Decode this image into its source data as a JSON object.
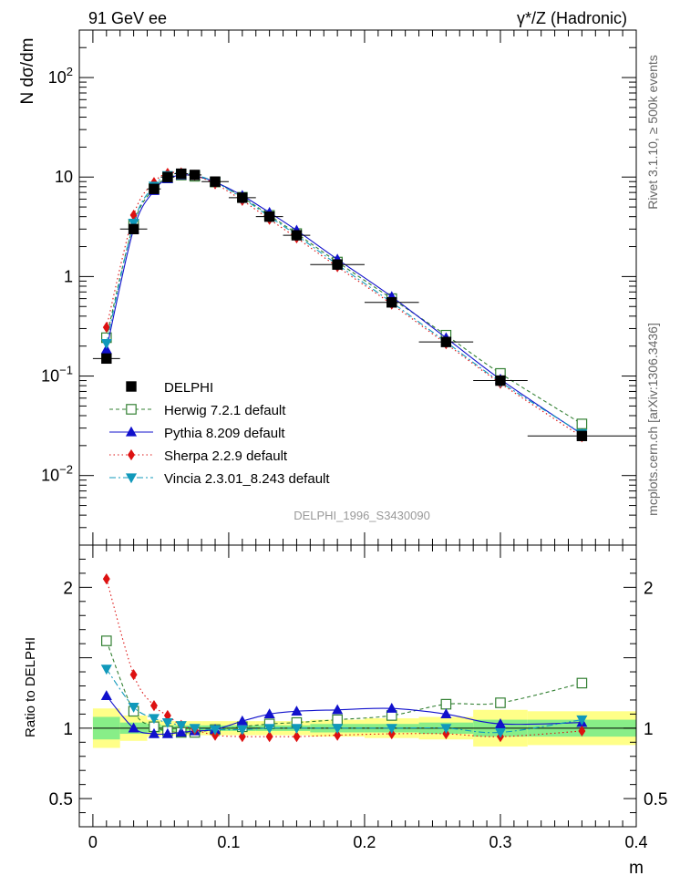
{
  "header": {
    "left_title": "91 GeV ee",
    "right_title": "γ*/Z (Hadronic)"
  },
  "side_labels": {
    "right_top": "Rivet 3.1.10, ≥ 500k events",
    "right_bottom": "mcplots.cern.ch [arXiv:1306.3436]"
  },
  "watermark": "DELPHI_1996_S3430090",
  "chart_data": {
    "type": "line",
    "x_label": "m",
    "main": {
      "ylabel": "N dσ/dm",
      "yscale": "log",
      "ylim": [
        0.002,
        300
      ],
      "xlim": [
        -0.01,
        0.4
      ],
      "y_ticks": [
        {
          "v": 0.01,
          "base": "10",
          "exp": "−2",
          "plain": ""
        },
        {
          "v": 0.1,
          "base": "10",
          "exp": "−1",
          "plain": ""
        },
        {
          "v": 1,
          "base": "",
          "exp": "",
          "plain": "1"
        },
        {
          "v": 10,
          "base": "",
          "exp": "",
          "plain": "10"
        },
        {
          "v": 100,
          "base": "10",
          "exp": "2",
          "plain": ""
        }
      ]
    },
    "ratio": {
      "ylabel": "Ratio to DELPHI",
      "ylim": [
        0.3,
        2.3
      ],
      "y_ticks": [
        {
          "v": 0.5,
          "label": "0.5"
        },
        {
          "v": 1,
          "label": "1"
        },
        {
          "v": 2,
          "label": "2"
        }
      ]
    },
    "x_ticks": [
      {
        "v": 0,
        "label": "0"
      },
      {
        "v": 0.1,
        "label": "0.1"
      },
      {
        "v": 0.2,
        "label": "0.2"
      },
      {
        "v": 0.3,
        "label": "0.3"
      },
      {
        "v": 0.4,
        "label": "0.4"
      }
    ],
    "data": {
      "name": "DELPHI",
      "x": [
        0.01,
        0.03,
        0.045,
        0.055,
        0.065,
        0.075,
        0.09,
        0.11,
        0.13,
        0.15,
        0.18,
        0.22,
        0.26,
        0.3,
        0.36
      ],
      "y": [
        0.15,
        3.0,
        7.6,
        10.0,
        10.8,
        10.5,
        9.0,
        6.2,
        4.0,
        2.6,
        1.32,
        0.55,
        0.22,
        0.09,
        0.025
      ],
      "xerr": [
        0.01,
        0.01,
        0.005,
        0.005,
        0.005,
        0.005,
        0.01,
        0.01,
        0.01,
        0.01,
        0.02,
        0.02,
        0.02,
        0.02,
        0.04
      ],
      "band_stat": [
        0.08,
        0.04,
        0.03,
        0.02,
        0.02,
        0.02,
        0.02,
        0.02,
        0.02,
        0.02,
        0.03,
        0.03,
        0.04,
        0.06,
        0.06
      ],
      "band_tot": [
        0.14,
        0.09,
        0.06,
        0.05,
        0.05,
        0.05,
        0.05,
        0.05,
        0.05,
        0.05,
        0.06,
        0.07,
        0.08,
        0.13,
        0.12
      ]
    },
    "series": [
      {
        "name": "Herwig 7.2.1 default",
        "color": "#338033",
        "marker": "square-open",
        "dash": "4,3",
        "ratio": [
          1.62,
          1.12,
          1.01,
          0.98,
          0.97,
          0.97,
          0.99,
          1.01,
          1.03,
          1.04,
          1.06,
          1.09,
          1.17,
          1.18,
          1.32
        ]
      },
      {
        "name": "Pythia 8.209 default",
        "color": "#1111cc",
        "marker": "triangle-up",
        "dash": "",
        "ratio": [
          1.23,
          1.0,
          0.96,
          0.96,
          0.97,
          0.98,
          0.99,
          1.05,
          1.1,
          1.12,
          1.13,
          1.14,
          1.1,
          1.03,
          1.04
        ]
      },
      {
        "name": "Sherpa 2.2.9 default",
        "color": "#dd1111",
        "marker": "diamond",
        "dash": "1.5,3",
        "ratio": [
          2.06,
          1.38,
          1.16,
          1.09,
          1.02,
          0.99,
          0.95,
          0.94,
          0.94,
          0.94,
          0.95,
          0.96,
          0.96,
          0.94,
          0.98
        ]
      },
      {
        "name": "Vincia 2.3.01_8.243 default",
        "color": "#1199bb",
        "marker": "triangle-down",
        "dash": "7,3,2,3",
        "ratio": [
          1.42,
          1.15,
          1.07,
          1.04,
          1.02,
          1.0,
          0.99,
          0.99,
          1.0,
          1.0,
          1.0,
          1.0,
          1.0,
          0.97,
          1.06
        ]
      }
    ],
    "legend_position": "lower-left",
    "colors": {
      "band_total": "#ffff88",
      "band_stat": "#88ee88",
      "data": "#000000"
    }
  }
}
